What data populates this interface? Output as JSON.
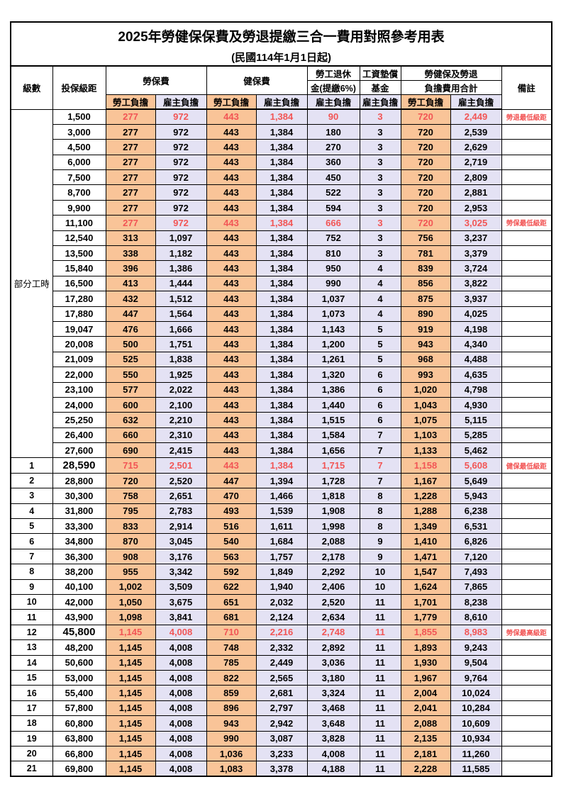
{
  "title": "2025年勞健保保費及勞退提繳三合一費用對照參考用表",
  "subtitle": "(民國114年1月1日起)",
  "header": {
    "level": "級數",
    "bracket": "投保級距",
    "labor_ins": "勞保費",
    "health_ins": "健保費",
    "pension_line1": "勞工退休",
    "pension_line2": "金(提繳6%)",
    "wage_fund_line1": "工資墊償",
    "wage_fund_line2": "基金",
    "total_line1": "勞健保及勞退",
    "total_line2": "負擔費用合計",
    "employee": "勞工負擔",
    "employer": "雇主負擔",
    "remark": "備註"
  },
  "part_time_label": "部分工時",
  "colors": {
    "employee_fill": "#f9c498",
    "employer_fill": "#e4e2f4",
    "highlight_red": "#f25555"
  },
  "rows": [
    {
      "level": "",
      "bracket": "1,500",
      "cells": [
        "277",
        "972",
        "443",
        "1,384",
        "90",
        "3",
        "720",
        "2,449"
      ],
      "remark": "勞退最低級距",
      "red": true,
      "big": false
    },
    {
      "level": "",
      "bracket": "3,000",
      "cells": [
        "277",
        "972",
        "443",
        "1,384",
        "180",
        "3",
        "720",
        "2,539"
      ],
      "remark": "",
      "red": false,
      "big": false
    },
    {
      "level": "",
      "bracket": "4,500",
      "cells": [
        "277",
        "972",
        "443",
        "1,384",
        "270",
        "3",
        "720",
        "2,629"
      ],
      "remark": "",
      "red": false,
      "big": false
    },
    {
      "level": "",
      "bracket": "6,000",
      "cells": [
        "277",
        "972",
        "443",
        "1,384",
        "360",
        "3",
        "720",
        "2,719"
      ],
      "remark": "",
      "red": false,
      "big": false
    },
    {
      "level": "",
      "bracket": "7,500",
      "cells": [
        "277",
        "972",
        "443",
        "1,384",
        "450",
        "3",
        "720",
        "2,809"
      ],
      "remark": "",
      "red": false,
      "big": false
    },
    {
      "level": "",
      "bracket": "8,700",
      "cells": [
        "277",
        "972",
        "443",
        "1,384",
        "522",
        "3",
        "720",
        "2,881"
      ],
      "remark": "",
      "red": false,
      "big": false
    },
    {
      "level": "",
      "bracket": "9,900",
      "cells": [
        "277",
        "972",
        "443",
        "1,384",
        "594",
        "3",
        "720",
        "2,953"
      ],
      "remark": "",
      "red": false,
      "big": false
    },
    {
      "level": "",
      "bracket": "11,100",
      "cells": [
        "277",
        "972",
        "443",
        "1,384",
        "666",
        "3",
        "720",
        "3,025"
      ],
      "remark": "勞保最低級距",
      "red": true,
      "big": false
    },
    {
      "level": "",
      "bracket": "12,540",
      "cells": [
        "313",
        "1,097",
        "443",
        "1,384",
        "752",
        "3",
        "756",
        "3,237"
      ],
      "remark": "",
      "red": false,
      "big": false
    },
    {
      "level": "",
      "bracket": "13,500",
      "cells": [
        "338",
        "1,182",
        "443",
        "1,384",
        "810",
        "3",
        "781",
        "3,379"
      ],
      "remark": "",
      "red": false,
      "big": false
    },
    {
      "level": "",
      "bracket": "15,840",
      "cells": [
        "396",
        "1,386",
        "443",
        "1,384",
        "950",
        "4",
        "839",
        "3,724"
      ],
      "remark": "",
      "red": false,
      "big": false
    },
    {
      "level": "",
      "bracket": "16,500",
      "cells": [
        "413",
        "1,444",
        "443",
        "1,384",
        "990",
        "4",
        "856",
        "3,822"
      ],
      "remark": "",
      "red": false,
      "big": false
    },
    {
      "level": "",
      "bracket": "17,280",
      "cells": [
        "432",
        "1,512",
        "443",
        "1,384",
        "1,037",
        "4",
        "875",
        "3,937"
      ],
      "remark": "",
      "red": false,
      "big": false
    },
    {
      "level": "",
      "bracket": "17,880",
      "cells": [
        "447",
        "1,564",
        "443",
        "1,384",
        "1,073",
        "4",
        "890",
        "4,025"
      ],
      "remark": "",
      "red": false,
      "big": false
    },
    {
      "level": "",
      "bracket": "19,047",
      "cells": [
        "476",
        "1,666",
        "443",
        "1,384",
        "1,143",
        "5",
        "919",
        "4,198"
      ],
      "remark": "",
      "red": false,
      "big": false
    },
    {
      "level": "",
      "bracket": "20,008",
      "cells": [
        "500",
        "1,751",
        "443",
        "1,384",
        "1,200",
        "5",
        "943",
        "4,340"
      ],
      "remark": "",
      "red": false,
      "big": false
    },
    {
      "level": "",
      "bracket": "21,009",
      "cells": [
        "525",
        "1,838",
        "443",
        "1,384",
        "1,261",
        "5",
        "968",
        "4,488"
      ],
      "remark": "",
      "red": false,
      "big": false
    },
    {
      "level": "",
      "bracket": "22,000",
      "cells": [
        "550",
        "1,925",
        "443",
        "1,384",
        "1,320",
        "6",
        "993",
        "4,635"
      ],
      "remark": "",
      "red": false,
      "big": false
    },
    {
      "level": "",
      "bracket": "23,100",
      "cells": [
        "577",
        "2,022",
        "443",
        "1,384",
        "1,386",
        "6",
        "1,020",
        "4,798"
      ],
      "remark": "",
      "red": false,
      "big": false
    },
    {
      "level": "",
      "bracket": "24,000",
      "cells": [
        "600",
        "2,100",
        "443",
        "1,384",
        "1,440",
        "6",
        "1,043",
        "4,930"
      ],
      "remark": "",
      "red": false,
      "big": false
    },
    {
      "level": "",
      "bracket": "25,250",
      "cells": [
        "632",
        "2,210",
        "443",
        "1,384",
        "1,515",
        "6",
        "1,075",
        "5,115"
      ],
      "remark": "",
      "red": false,
      "big": false
    },
    {
      "level": "",
      "bracket": "26,400",
      "cells": [
        "660",
        "2,310",
        "443",
        "1,384",
        "1,584",
        "7",
        "1,103",
        "5,285"
      ],
      "remark": "",
      "red": false,
      "big": false
    },
    {
      "level": "",
      "bracket": "27,600",
      "cells": [
        "690",
        "2,415",
        "443",
        "1,384",
        "1,656",
        "7",
        "1,133",
        "5,462"
      ],
      "remark": "",
      "red": false,
      "big": false
    },
    {
      "level": "1",
      "bracket": "28,590",
      "cells": [
        "715",
        "2,501",
        "443",
        "1,384",
        "1,715",
        "7",
        "1,158",
        "5,608"
      ],
      "remark": "健保最低級距",
      "red": true,
      "big": true
    },
    {
      "level": "2",
      "bracket": "28,800",
      "cells": [
        "720",
        "2,520",
        "447",
        "1,394",
        "1,728",
        "7",
        "1,167",
        "5,649"
      ],
      "remark": "",
      "red": false,
      "big": false
    },
    {
      "level": "3",
      "bracket": "30,300",
      "cells": [
        "758",
        "2,651",
        "470",
        "1,466",
        "1,818",
        "8",
        "1,228",
        "5,943"
      ],
      "remark": "",
      "red": false,
      "big": false
    },
    {
      "level": "4",
      "bracket": "31,800",
      "cells": [
        "795",
        "2,783",
        "493",
        "1,539",
        "1,908",
        "8",
        "1,288",
        "6,238"
      ],
      "remark": "",
      "red": false,
      "big": false
    },
    {
      "level": "5",
      "bracket": "33,300",
      "cells": [
        "833",
        "2,914",
        "516",
        "1,611",
        "1,998",
        "8",
        "1,349",
        "6,531"
      ],
      "remark": "",
      "red": false,
      "big": false
    },
    {
      "level": "6",
      "bracket": "34,800",
      "cells": [
        "870",
        "3,045",
        "540",
        "1,684",
        "2,088",
        "9",
        "1,410",
        "6,826"
      ],
      "remark": "",
      "red": false,
      "big": false
    },
    {
      "level": "7",
      "bracket": "36,300",
      "cells": [
        "908",
        "3,176",
        "563",
        "1,757",
        "2,178",
        "9",
        "1,471",
        "7,120"
      ],
      "remark": "",
      "red": false,
      "big": false
    },
    {
      "level": "8",
      "bracket": "38,200",
      "cells": [
        "955",
        "3,342",
        "592",
        "1,849",
        "2,292",
        "10",
        "1,547",
        "7,493"
      ],
      "remark": "",
      "red": false,
      "big": false
    },
    {
      "level": "9",
      "bracket": "40,100",
      "cells": [
        "1,002",
        "3,509",
        "622",
        "1,940",
        "2,406",
        "10",
        "1,624",
        "7,865"
      ],
      "remark": "",
      "red": false,
      "big": false
    },
    {
      "level": "10",
      "bracket": "42,000",
      "cells": [
        "1,050",
        "3,675",
        "651",
        "2,032",
        "2,520",
        "11",
        "1,701",
        "8,238"
      ],
      "remark": "",
      "red": false,
      "big": false
    },
    {
      "level": "11",
      "bracket": "43,900",
      "cells": [
        "1,098",
        "3,841",
        "681",
        "2,124",
        "2,634",
        "11",
        "1,779",
        "8,610"
      ],
      "remark": "",
      "red": false,
      "big": false
    },
    {
      "level": "12",
      "bracket": "45,800",
      "cells": [
        "1,145",
        "4,008",
        "710",
        "2,216",
        "2,748",
        "11",
        "1,855",
        "8,983"
      ],
      "remark": "勞保最高級距",
      "red": true,
      "big": true
    },
    {
      "level": "13",
      "bracket": "48,200",
      "cells": [
        "1,145",
        "4,008",
        "748",
        "2,332",
        "2,892",
        "11",
        "1,893",
        "9,243"
      ],
      "remark": "",
      "red": false,
      "big": false
    },
    {
      "level": "14",
      "bracket": "50,600",
      "cells": [
        "1,145",
        "4,008",
        "785",
        "2,449",
        "3,036",
        "11",
        "1,930",
        "9,504"
      ],
      "remark": "",
      "red": false,
      "big": false
    },
    {
      "level": "15",
      "bracket": "53,000",
      "cells": [
        "1,145",
        "4,008",
        "822",
        "2,565",
        "3,180",
        "11",
        "1,967",
        "9,764"
      ],
      "remark": "",
      "red": false,
      "big": false
    },
    {
      "level": "16",
      "bracket": "55,400",
      "cells": [
        "1,145",
        "4,008",
        "859",
        "2,681",
        "3,324",
        "11",
        "2,004",
        "10,024"
      ],
      "remark": "",
      "red": false,
      "big": false
    },
    {
      "level": "17",
      "bracket": "57,800",
      "cells": [
        "1,145",
        "4,008",
        "896",
        "2,797",
        "3,468",
        "11",
        "2,041",
        "10,284"
      ],
      "remark": "",
      "red": false,
      "big": false
    },
    {
      "level": "18",
      "bracket": "60,800",
      "cells": [
        "1,145",
        "4,008",
        "943",
        "2,942",
        "3,648",
        "11",
        "2,088",
        "10,609"
      ],
      "remark": "",
      "red": false,
      "big": false
    },
    {
      "level": "19",
      "bracket": "63,800",
      "cells": [
        "1,145",
        "4,008",
        "990",
        "3,087",
        "3,828",
        "11",
        "2,135",
        "10,934"
      ],
      "remark": "",
      "red": false,
      "big": false
    },
    {
      "level": "20",
      "bracket": "66,800",
      "cells": [
        "1,145",
        "4,008",
        "1,036",
        "3,233",
        "4,008",
        "11",
        "2,181",
        "11,260"
      ],
      "remark": "",
      "red": false,
      "big": false
    },
    {
      "level": "21",
      "bracket": "69,800",
      "cells": [
        "1,145",
        "4,008",
        "1,083",
        "3,378",
        "4,188",
        "11",
        "2,228",
        "11,585"
      ],
      "remark": "",
      "red": false,
      "big": false
    }
  ]
}
